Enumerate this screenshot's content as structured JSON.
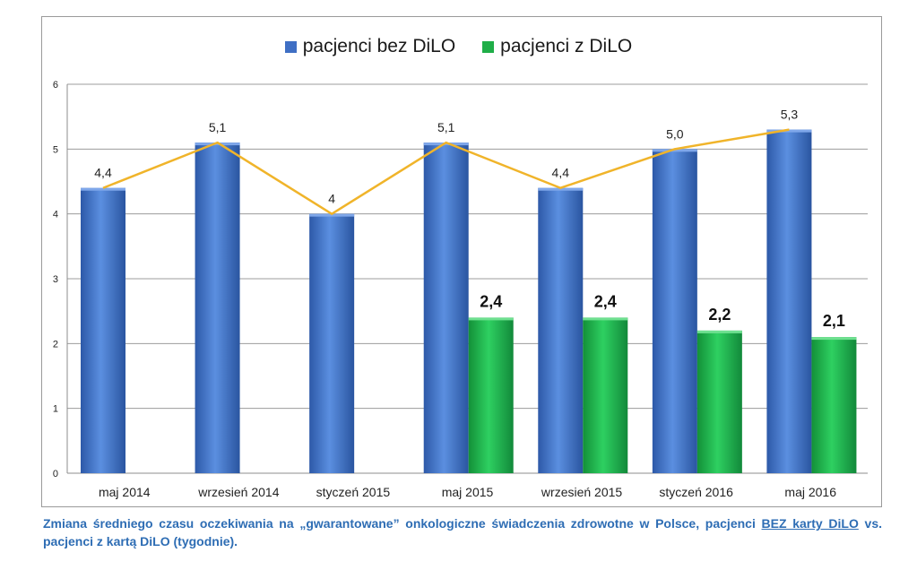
{
  "chart_data": {
    "type": "bar",
    "categories": [
      "maj 2014",
      "wrzesień 2014",
      "styczeń 2015",
      "maj 2015",
      "wrzesień 2015",
      "styczeń 2016",
      "maj 2016"
    ],
    "series": [
      {
        "name": "pacjenci bez DiLO",
        "color": "#3f6fc4",
        "values": [
          4.4,
          5.1,
          4.0,
          5.1,
          4.4,
          5.0,
          5.3
        ],
        "labels": [
          "4,4",
          "5,1",
          "4",
          "5,1",
          "4,4",
          "5,0",
          "5,3"
        ]
      },
      {
        "name": "pacjenci z DiLO",
        "color": "#1fae48",
        "values": [
          null,
          null,
          null,
          2.4,
          2.4,
          2.2,
          2.1
        ],
        "labels": [
          "",
          "",
          "",
          "2,4",
          "2,4",
          "2,2",
          "2,1"
        ]
      }
    ],
    "line": {
      "color": "#f0b42a",
      "values": [
        4.4,
        5.1,
        4.0,
        5.1,
        4.4,
        5.0,
        5.3
      ]
    },
    "ylim": [
      0,
      6
    ],
    "yticks": [
      "0",
      "1",
      "2",
      "3",
      "4",
      "5",
      "6"
    ],
    "grid": true,
    "legend_position": "top",
    "xlabel": "",
    "ylabel": ""
  },
  "caption": {
    "part1": "Zmiana średniego czasu oczekiwania na „gwarantowane” onkologiczne świadczenia zdrowotne w Polsce, pacjenci ",
    "underlined": "BEZ karty DiLO",
    "part2": " vs. pacjenci z kartą DiLO (tygodnie)."
  }
}
